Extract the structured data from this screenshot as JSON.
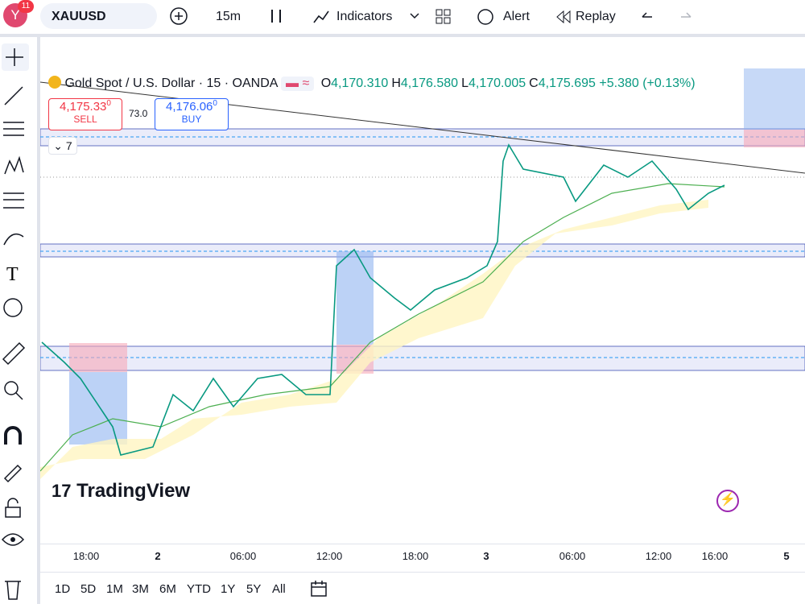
{
  "toolbar": {
    "avatar": "Y",
    "badge": "11",
    "symbol": "XAUUSD",
    "interval": "15m",
    "indicators": "Indicators",
    "alert": "Alert",
    "replay": "Replay"
  },
  "legend": {
    "title": "Gold Spot / U.S. Dollar · 15 · OANDA",
    "ohlc": [
      {
        "label": "O",
        "value": "4,170.310"
      },
      {
        "label": "H",
        "value": "4,176.580"
      },
      {
        "label": "L",
        "value": "4,170.005"
      },
      {
        "label": "C",
        "value": "4,175.695"
      }
    ],
    "change": "+5.380 (+0.13%)"
  },
  "trade": {
    "sell_price": "4,175.33",
    "sell_sup": "0",
    "sell_label": "SELL",
    "spread": "73.0",
    "buy_price": "4,176.06",
    "buy_sup": "0",
    "buy_label": "BUY"
  },
  "indicator_count": "7",
  "watermark": "TradingView",
  "time_axis": [
    "18:00",
    "2",
    "06:00",
    "12:00",
    "18:00",
    "3",
    "06:00",
    "12:00",
    "16:00",
    "5"
  ],
  "ranges": [
    "1D",
    "5D",
    "1M",
    "3M",
    "6M",
    "YTD",
    "1Y",
    "5Y",
    "All"
  ]
}
